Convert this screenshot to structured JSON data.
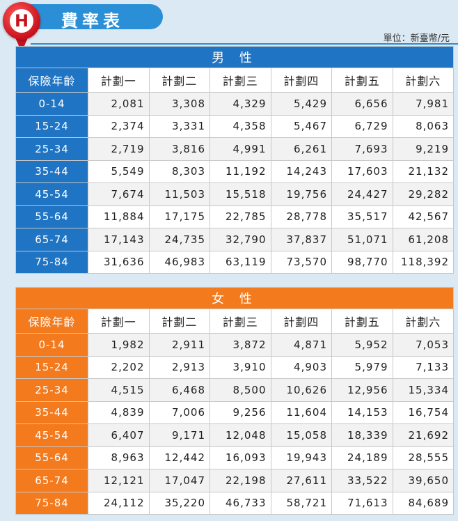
{
  "header": {
    "title": "費率表",
    "badge_letter": "H",
    "unit": "單位：新臺幣/元"
  },
  "column_headers": [
    "保險年齡",
    "計劃一",
    "計劃二",
    "計劃三",
    "計劃四",
    "計劃五",
    "計劃六"
  ],
  "male": {
    "title": "男 性",
    "rows": [
      {
        "age": "0-14",
        "values": [
          "2,081",
          "3,308",
          "4,329",
          "5,429",
          "6,656",
          "7,981"
        ]
      },
      {
        "age": "15-24",
        "values": [
          "2,374",
          "3,331",
          "4,358",
          "5,467",
          "6,729",
          "8,063"
        ]
      },
      {
        "age": "25-34",
        "values": [
          "2,719",
          "3,816",
          "4,991",
          "6,261",
          "7,693",
          "9,219"
        ]
      },
      {
        "age": "35-44",
        "values": [
          "5,549",
          "8,303",
          "11,192",
          "14,243",
          "17,603",
          "21,132"
        ]
      },
      {
        "age": "45-54",
        "values": [
          "7,674",
          "11,503",
          "15,518",
          "19,756",
          "24,427",
          "29,282"
        ]
      },
      {
        "age": "55-64",
        "values": [
          "11,884",
          "17,175",
          "22,785",
          "28,778",
          "35,517",
          "42,567"
        ]
      },
      {
        "age": "65-74",
        "values": [
          "17,143",
          "24,735",
          "32,790",
          "37,837",
          "51,071",
          "61,208"
        ]
      },
      {
        "age": "75-84",
        "values": [
          "31,636",
          "46,983",
          "63,119",
          "73,570",
          "98,770",
          "118,392"
        ]
      }
    ]
  },
  "female": {
    "title": "女 性",
    "rows": [
      {
        "age": "0-14",
        "values": [
          "1,982",
          "2,911",
          "3,872",
          "4,871",
          "5,952",
          "7,053"
        ]
      },
      {
        "age": "15-24",
        "values": [
          "2,202",
          "2,913",
          "3,910",
          "4,903",
          "5,979",
          "7,133"
        ]
      },
      {
        "age": "25-34",
        "values": [
          "4,515",
          "6,468",
          "8,500",
          "10,626",
          "12,956",
          "15,334"
        ]
      },
      {
        "age": "35-44",
        "values": [
          "4,839",
          "7,006",
          "9,256",
          "11,604",
          "14,153",
          "16,754"
        ]
      },
      {
        "age": "45-54",
        "values": [
          "6,407",
          "9,171",
          "12,048",
          "15,058",
          "18,339",
          "21,692"
        ]
      },
      {
        "age": "55-64",
        "values": [
          "8,963",
          "12,442",
          "16,093",
          "19,943",
          "24,189",
          "28,555"
        ]
      },
      {
        "age": "65-74",
        "values": [
          "12,121",
          "17,047",
          "22,198",
          "27,611",
          "33,522",
          "39,650"
        ]
      },
      {
        "age": "75-84",
        "values": [
          "24,112",
          "35,220",
          "46,733",
          "58,721",
          "71,613",
          "84,689"
        ]
      }
    ]
  },
  "colors": {
    "male_blue": "#1f74c4",
    "female_orange": "#f47a1e",
    "badge_red": "#c9111b",
    "header_blue": "#2a8fd6"
  }
}
